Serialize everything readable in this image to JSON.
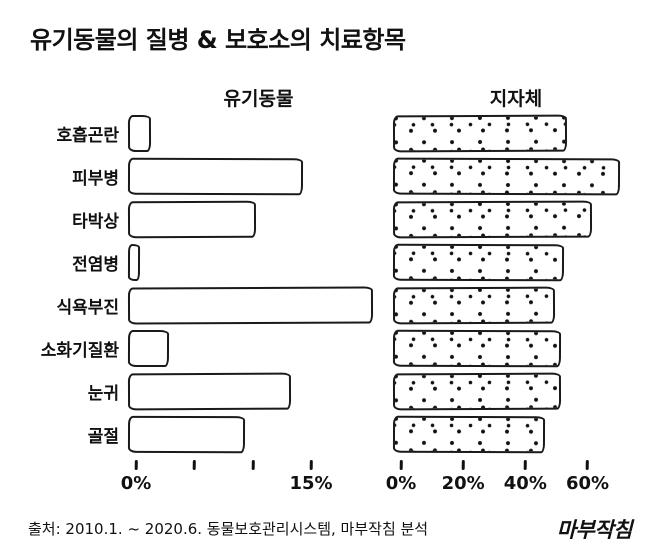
{
  "title": "유기동물의 질병 & 보호소의 치료항목",
  "footer": {
    "source": "출처: 2010.1. ~ 2020.6. 동물보호관리시스템, 마부작침 분석",
    "logo": "마부작침"
  },
  "chart_data": {
    "type": "bar",
    "orientation": "horizontal",
    "grid": false,
    "legend_position": "column-headers",
    "categories": [
      "호흡곤란",
      "피부병",
      "타박상",
      "전염병",
      "식욕부진",
      "소화기질환",
      "눈귀",
      "골절"
    ],
    "series": [
      {
        "name": "유기동물",
        "values": [
          2,
          15,
          11,
          1,
          21,
          3.5,
          14,
          10
        ],
        "unit": "%",
        "xlim": [
          0,
          21
        ],
        "ticks": [
          0,
          5,
          10,
          15
        ],
        "tick_labels": [
          "0%",
          "",
          "",
          "15%"
        ],
        "fill": "white"
      },
      {
        "name": "지자체",
        "values": [
          56,
          73,
          64,
          55,
          52,
          54,
          54,
          49
        ],
        "unit": "%",
        "xlim": [
          0,
          74
        ],
        "ticks": [
          0,
          20,
          40,
          60
        ],
        "tick_labels": [
          "0%",
          "20%",
          "40%",
          "60%"
        ],
        "fill": "dots"
      }
    ]
  }
}
